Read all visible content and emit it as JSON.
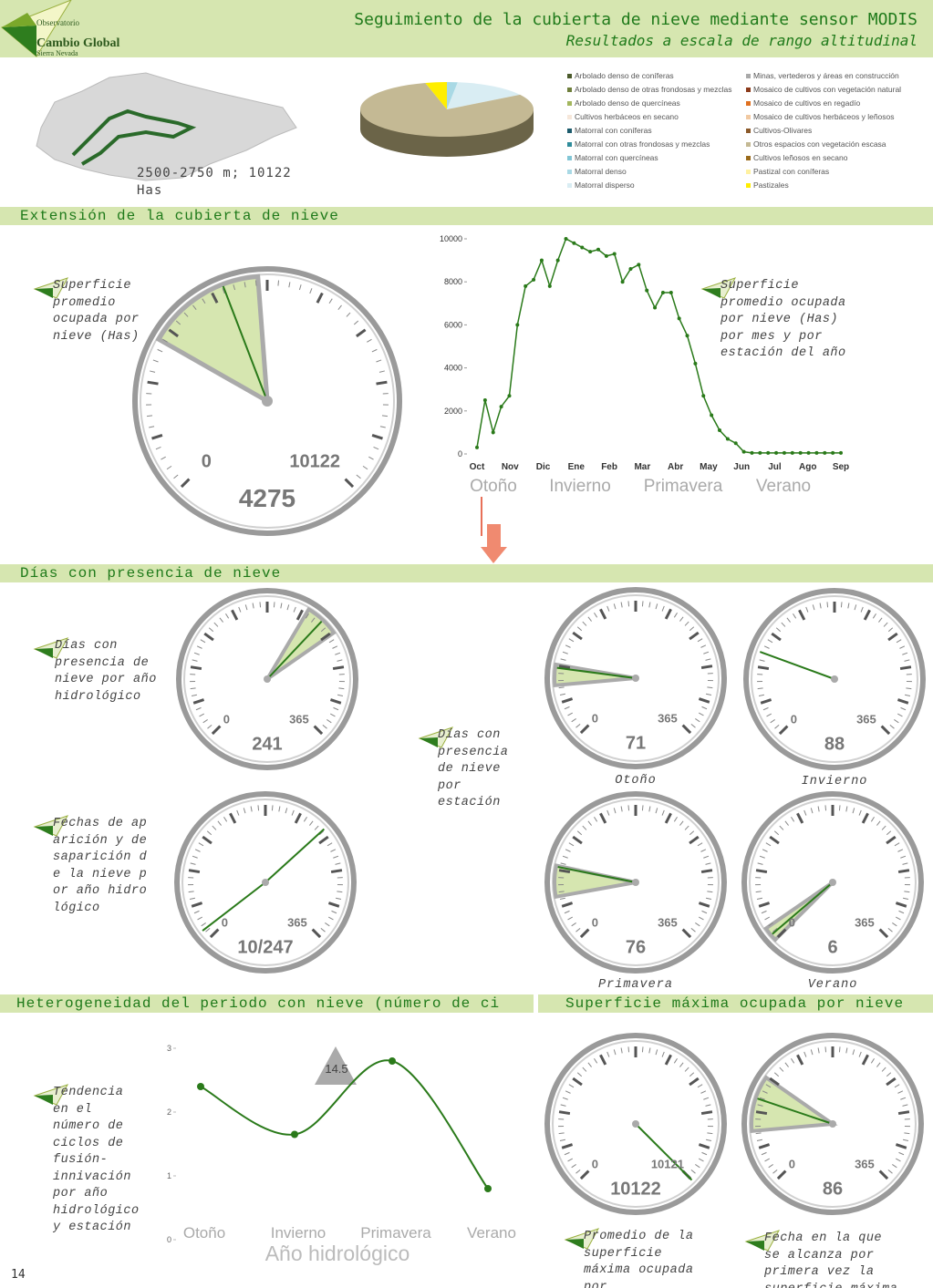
{
  "header": {
    "org_line1": "Observatorio",
    "org_line2": "Cambio Global",
    "org_line3": "Sierra Nevada",
    "title": "Seguimiento de la cubierta de nieve mediante sensor MODIS",
    "subtitle": "Resultados a escala de rango altitudinal"
  },
  "map": {
    "caption": "2500-2750 m; 10122 Has"
  },
  "pie": {
    "type": "pie",
    "categories": [
      "Arbolado denso de coníferas",
      "Arbolado denso de otras frondosas y mezclas",
      "Arbolado denso de quercíneas",
      "Cultivos herbáceos en secano",
      "Matorral con coníferas",
      "Matorral con otras frondosas y mezclas",
      "Matorral con quercíneas",
      "Matorral denso",
      "Matorral disperso",
      "Minas, vertederos y áreas en construcción",
      "Mosaico de cultivos con vegetación natural",
      "Mosaico de cultivos en regadío",
      "Mosaico de cultivos herbáceos y leñosos",
      "Cultivos-Olivares",
      "Otros espacios con vegetación escasa",
      "Cultivos  leñosos en secano",
      "Pastizal con coníferas",
      "Pastizales"
    ],
    "colors": [
      "#4b5a2b",
      "#6f7f3c",
      "#a3b65e",
      "#f6e7da",
      "#1c5b6c",
      "#2f8c9b",
      "#82c6d6",
      "#a9d9e5",
      "#d9edf3",
      "#a9a9a9",
      "#8b3a1a",
      "#e07020",
      "#f1c9a2",
      "#8b5a2a",
      "#c4b994",
      "#9a6a1a",
      "#fff1a0",
      "#ffee00"
    ],
    "values": [
      0,
      0,
      0,
      0,
      0,
      0,
      0,
      2,
      14,
      0,
      0,
      0,
      0,
      0,
      80,
      0,
      0,
      4
    ]
  },
  "extension": {
    "title": "Extensión de la cubierta de nieve",
    "gauge": {
      "note": "Superficie promedio ocupada por nieve (Has)",
      "min": 0,
      "max": 10122,
      "value": 4275,
      "range": [
        2800,
        4900
      ]
    },
    "chart": {
      "type": "line",
      "note": "Superficie promedio ocupada por nieve (Has) por mes y por estación del año",
      "categories": [
        "Oct",
        "Nov",
        "Dic",
        "Ene",
        "Feb",
        "Mar",
        "Abr",
        "May",
        "Jun",
        "Jul",
        "Ago",
        "Sep"
      ],
      "seasons": [
        "Otoño",
        "Invierno",
        "Primavera",
        "Verano"
      ],
      "values": [
        300,
        2500,
        1000,
        2200,
        2700,
        6000,
        7800,
        8100,
        9000,
        7800,
        9000,
        10000,
        9800,
        9600,
        9400,
        9500,
        9200,
        9300,
        8000,
        8600,
        8800,
        7600,
        6800,
        7500,
        7500,
        6300,
        5500,
        4200,
        2700,
        1800,
        1100,
        700,
        500,
        100,
        50,
        50,
        50,
        50,
        50,
        50,
        50,
        50,
        50,
        50,
        50,
        50
      ],
      "color": "#2a7a1a",
      "ylim": [
        0,
        10000
      ],
      "yticks": [
        0,
        2000,
        4000,
        6000,
        8000,
        10000
      ]
    }
  },
  "days": {
    "title": "Días con presencia de nieve",
    "annual": {
      "note": "Días con presencia de nieve por año hidrológico",
      "min": 0,
      "max": 365,
      "value": 241,
      "range": [
        224,
        257
      ]
    },
    "dates": {
      "note": "Fechas de aparición y desaparición de la nieve por año hidrológico",
      "min": 0,
      "max": 365,
      "values": [
        10,
        247
      ],
      "value_label": "10/247"
    },
    "seasonal_note": "Días con presencia de nieve por estación",
    "seasons": [
      {
        "name": "Otoño",
        "min": 0,
        "max": 365,
        "value": 71,
        "range": [
          54,
          74
        ]
      },
      {
        "name": "Invierno",
        "min": 0,
        "max": 365,
        "value": 88
      },
      {
        "name": "Primavera",
        "min": 0,
        "max": 365,
        "value": 76,
        "range": [
          47,
          77
        ]
      },
      {
        "name": "Verano",
        "min": 0,
        "max": 365,
        "value": 6,
        "range": [
          0,
          14
        ]
      }
    ]
  },
  "heterogeneity": {
    "title": "Heterogeneidad del periodo con nieve (número de ci",
    "chart": {
      "type": "line",
      "note": "Tendencia en el número de ciclos de fusión-innivación por año hidrológico y estación",
      "categories": [
        "Otoño",
        "Invierno",
        "Primavera",
        "Verano"
      ],
      "values": [
        2.4,
        1.65,
        2.8,
        0.8
      ],
      "color": "#2a7a1a",
      "ylim": [
        0,
        3
      ],
      "yticks": [
        0,
        1,
        2,
        3
      ],
      "annotation": 14.5,
      "xlabel": "Año hidrológico"
    }
  },
  "max_surface": {
    "title": "Superficie máxima ocupada por nieve",
    "area": {
      "note": "Promedio de la superficie máxima ocupada por",
      "min": 0,
      "max": 10121,
      "value": 10122
    },
    "date": {
      "note": "Fecha en la que se alcanza por primera vez la superficie máxima",
      "min": 0,
      "max": 365,
      "value": 86,
      "range": [
        54,
        108
      ]
    }
  },
  "page_number": 14
}
